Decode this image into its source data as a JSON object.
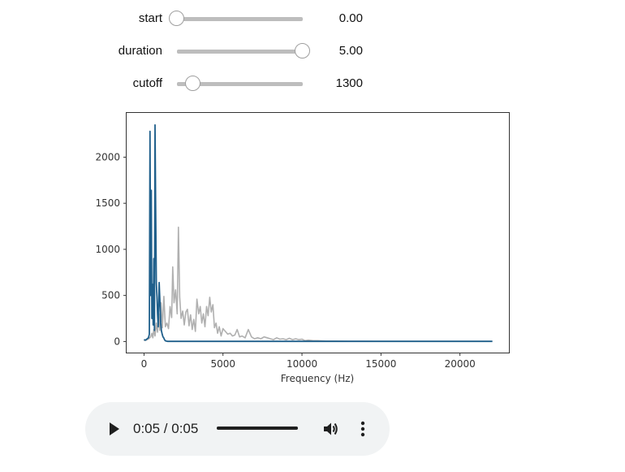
{
  "sliders": [
    {
      "label": "start",
      "value_text": "0.00",
      "fraction": 0.0
    },
    {
      "label": "duration",
      "value_text": "5.00",
      "fraction": 1.0
    },
    {
      "label": "cutoff",
      "value_text": "1300",
      "fraction": 0.13
    }
  ],
  "chart_data": {
    "type": "line",
    "title": "",
    "xlabel": "Frequency (Hz)",
    "ylabel": "",
    "xlim": [
      -1100,
      23100
    ],
    "ylim": [
      -120,
      2480
    ],
    "xticks": [
      0,
      5000,
      10000,
      15000,
      20000
    ],
    "yticks": [
      0,
      500,
      1000,
      1500,
      2000
    ],
    "grid": false,
    "series": [
      {
        "color": "#b0b0b0",
        "x": [
          0,
          200,
          300,
          420,
          500,
          560,
          620,
          700,
          780,
          860,
          940,
          1000,
          1080,
          1160,
          1260,
          1350,
          1450,
          1550,
          1650,
          1750,
          1820,
          1900,
          2000,
          2100,
          2180,
          2260,
          2350,
          2450,
          2550,
          2650,
          2750,
          2850,
          2950,
          3050,
          3150,
          3250,
          3350,
          3460,
          3560,
          3660,
          3760,
          3860,
          3960,
          4060,
          4160,
          4260,
          4360,
          4460,
          4560,
          4660,
          4760,
          4880,
          5000,
          5150,
          5300,
          5450,
          5600,
          5750,
          5900,
          6050,
          6200,
          6400,
          6600,
          6800,
          7000,
          7200,
          7400,
          7600,
          7800,
          8000,
          8200,
          8400,
          8600,
          8800,
          9000,
          9200,
          9400,
          9600,
          9800,
          10000,
          10200,
          10400,
          10700,
          11000,
          11500,
          12000,
          13000,
          14000,
          15000,
          16000,
          17000,
          18000,
          19000,
          20000,
          21000,
          22050
        ],
        "y": [
          10,
          20,
          30,
          50,
          90,
          40,
          130,
          60,
          200,
          100,
          300,
          120,
          420,
          150,
          490,
          160,
          200,
          140,
          380,
          260,
          810,
          420,
          560,
          300,
          1240,
          480,
          250,
          330,
          180,
          320,
          350,
          170,
          290,
          130,
          240,
          110,
          460,
          300,
          380,
          200,
          300,
          160,
          380,
          280,
          480,
          320,
          400,
          150,
          200,
          90,
          160,
          60,
          140,
          110,
          80,
          90,
          60,
          70,
          130,
          50,
          60,
          40,
          130,
          50,
          30,
          40,
          30,
          50,
          40,
          30,
          20,
          40,
          25,
          30,
          20,
          35,
          20,
          30,
          20,
          25,
          10,
          15,
          10,
          10,
          5,
          5,
          3,
          3,
          2,
          2,
          2,
          2,
          2,
          2,
          2,
          2
        ]
      },
      {
        "color": "#1f5f8b",
        "x": [
          0,
          100,
          200,
          280,
          340,
          380,
          420,
          460,
          500,
          540,
          580,
          620,
          660,
          700,
          740,
          780,
          820,
          860,
          900,
          960,
          1020,
          1060,
          1100,
          1150,
          1200,
          1250,
          1300,
          1350,
          1500,
          3000,
          6000,
          10000,
          15000,
          20000,
          22050
        ],
        "y": [
          20,
          15,
          30,
          40,
          80,
          2280,
          500,
          1640,
          250,
          620,
          180,
          900,
          120,
          2350,
          1440,
          640,
          480,
          300,
          160,
          640,
          380,
          200,
          120,
          80,
          50,
          40,
          20,
          8,
          2,
          2,
          2,
          2,
          2,
          2,
          2
        ]
      }
    ]
  },
  "audio": {
    "time_text": "0:05 / 0:05",
    "progress": 1.0,
    "play_icon": "play-icon",
    "volume_icon": "volume-icon",
    "menu_icon": "more-vert-icon"
  }
}
